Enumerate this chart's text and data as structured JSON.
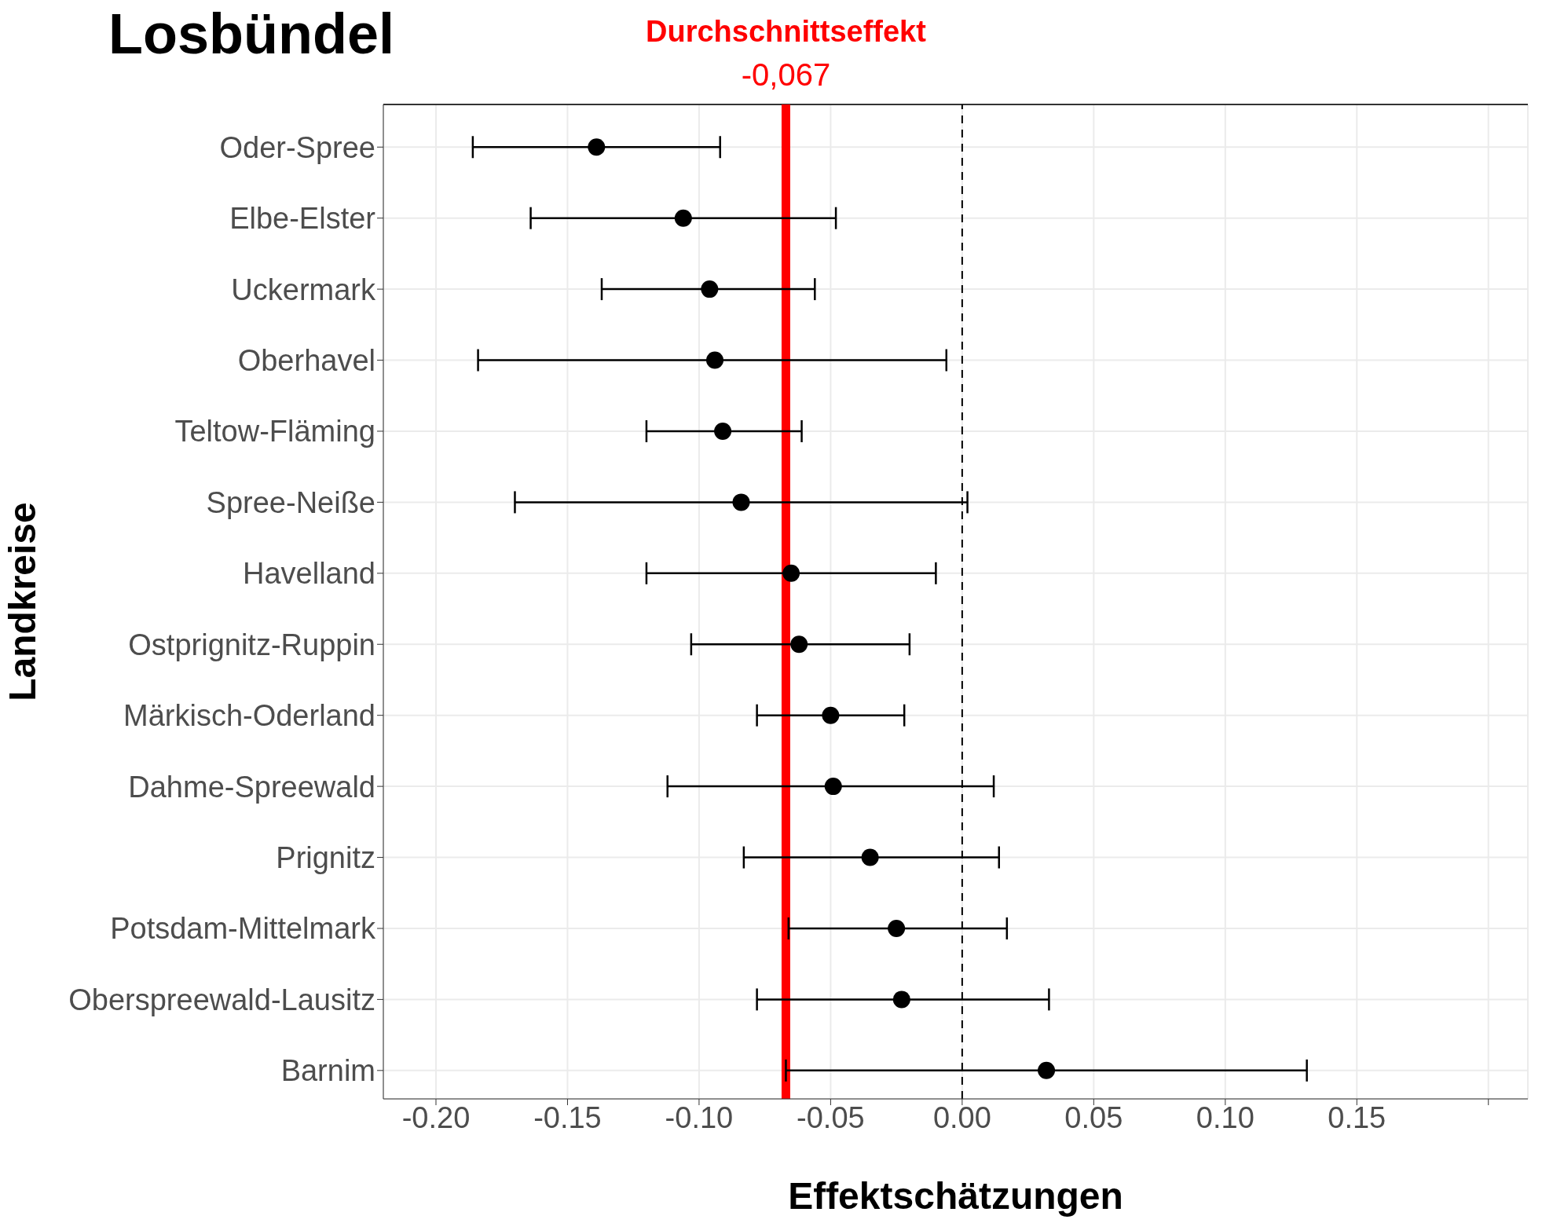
{
  "chart_data": {
    "type": "scatter",
    "title": "Losbündel",
    "xlabel": "Effektschätzungen",
    "ylabel": "Landkreise",
    "orientation": "horizontal",
    "color": "#000000",
    "marker": "circle",
    "grid": true,
    "categories": [
      "Oder-Spree",
      "Elbe-Elster",
      "Uckermark",
      "Oberhavel",
      "Teltow-Fläming",
      "Spree-Neiße",
      "Havelland",
      "Ostprignitz-Ruppin",
      "Märkisch-Oderland",
      "Dahme-Spreewald",
      "Prignitz",
      "Potsdam-Mittelmark",
      "Oberspreewald-Lausitz",
      "Barnim"
    ],
    "values": [
      -0.139,
      -0.106,
      -0.096,
      -0.094,
      -0.091,
      -0.084,
      -0.065,
      -0.062,
      -0.05,
      -0.049,
      -0.035,
      -0.025,
      -0.023,
      0.032
    ],
    "errors": [
      [
        -0.186,
        -0.092
      ],
      [
        -0.164,
        -0.048
      ],
      [
        -0.137,
        -0.056
      ],
      [
        -0.184,
        -0.006
      ],
      [
        -0.12,
        -0.061
      ],
      [
        -0.17,
        0.002
      ],
      [
        -0.12,
        -0.01
      ],
      [
        -0.103,
        -0.02
      ],
      [
        -0.078,
        -0.022
      ],
      [
        -0.112,
        0.012
      ],
      [
        -0.083,
        0.014
      ],
      [
        -0.066,
        0.017
      ],
      [
        -0.078,
        0.033
      ],
      [
        -0.067,
        0.131
      ]
    ],
    "xlim": [
      -0.22,
      0.215
    ],
    "xticks": [
      {
        "value": -0.2,
        "label": "-0.20"
      },
      {
        "value": -0.15,
        "label": "-0.15"
      },
      {
        "value": -0.1,
        "label": "-0.10"
      },
      {
        "value": -0.05,
        "label": "-0.05"
      },
      {
        "value": 0,
        "label": "0.00"
      },
      {
        "value": 0.05,
        "label": "0.05"
      },
      {
        "value": 0.1,
        "label": "0.10"
      },
      {
        "value": 0.15,
        "label": "0.15"
      },
      {
        "value": 0.2,
        "label": null
      }
    ],
    "ref_lines": [
      {
        "axis": "x",
        "value": -0.067,
        "label": "Durchschnittseffekt\n-0,067",
        "color": "#ff0000",
        "line_style": "solid"
      },
      {
        "axis": "x",
        "value": 0,
        "color": "#000000",
        "line_style": "dashed"
      }
    ]
  }
}
